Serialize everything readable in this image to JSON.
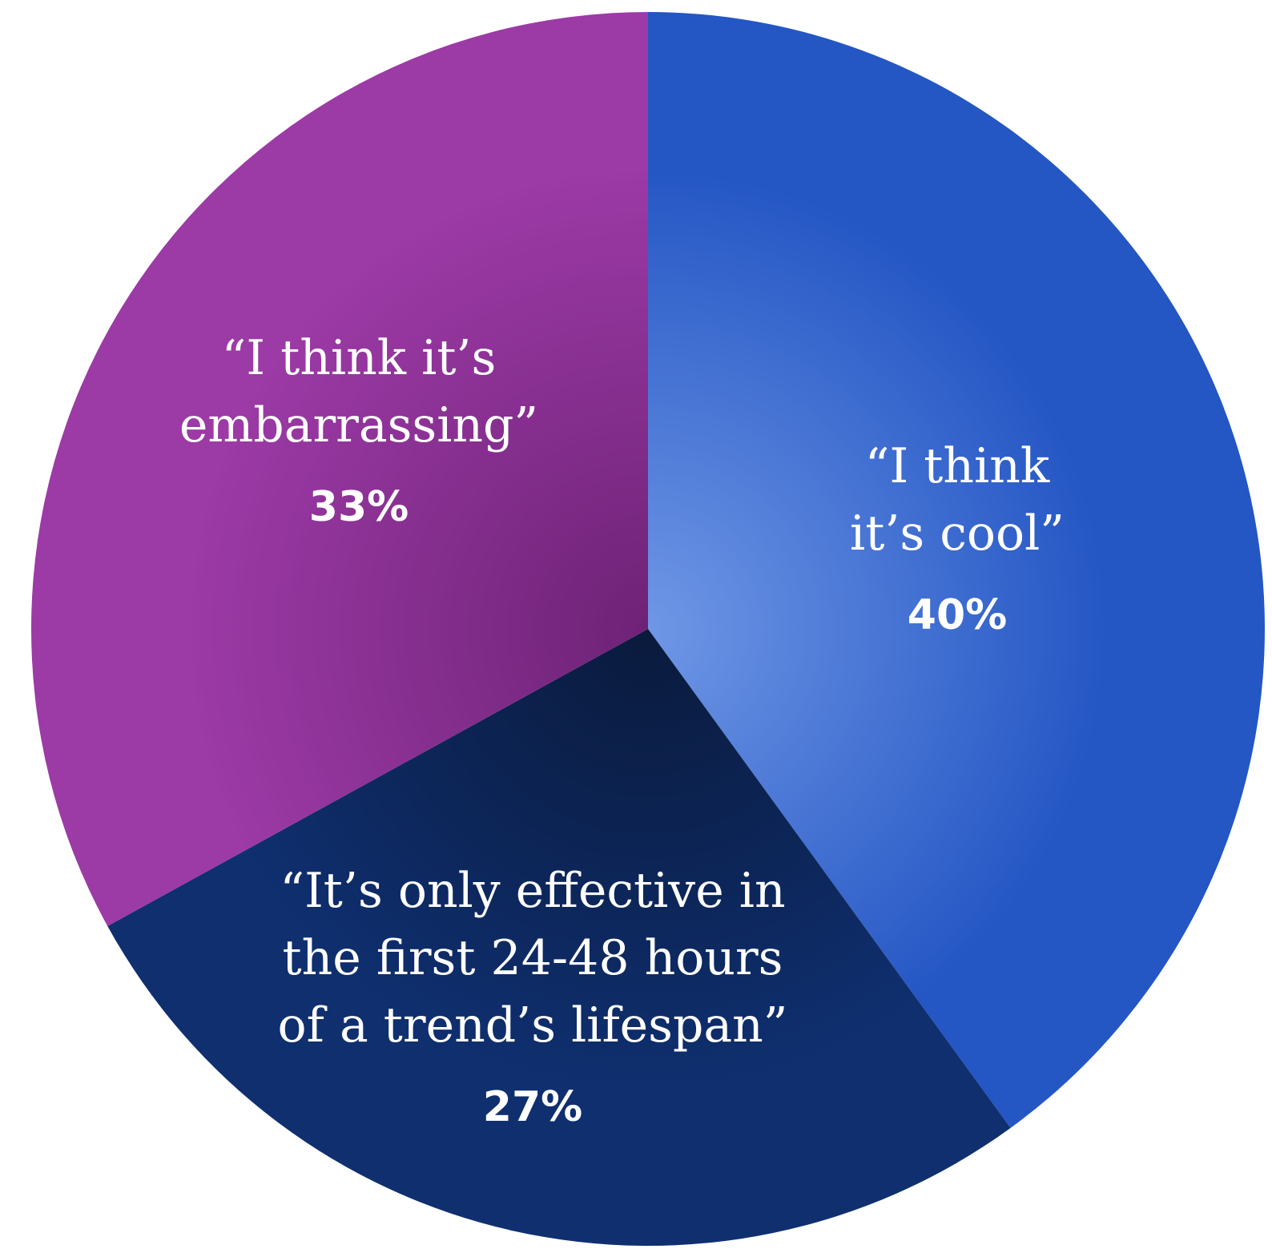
{
  "chart_data": {
    "type": "pie",
    "slices": [
      {
        "label_lines": [
          "“I think",
          "it’s cool”"
        ],
        "value": 40,
        "value_label": "40%",
        "color": "#2456c4",
        "color_light": "#6f97e6"
      },
      {
        "label_lines": [
          "“It’s only effective in",
          "the first 24-48 hours",
          "of a trend’s lifespan”"
        ],
        "value": 27,
        "value_label": "27%",
        "color": "#0f2f6f",
        "color_light": "#0a1a3c"
      },
      {
        "label_lines": [
          "“I think it’s",
          "embarrassing”"
        ],
        "value": 33,
        "value_label": "33%",
        "color": "#9c3aa6",
        "color_light": "#6e2276"
      }
    ],
    "start_angle_deg": 0,
    "direction": "clockwise",
    "legend": "none"
  }
}
